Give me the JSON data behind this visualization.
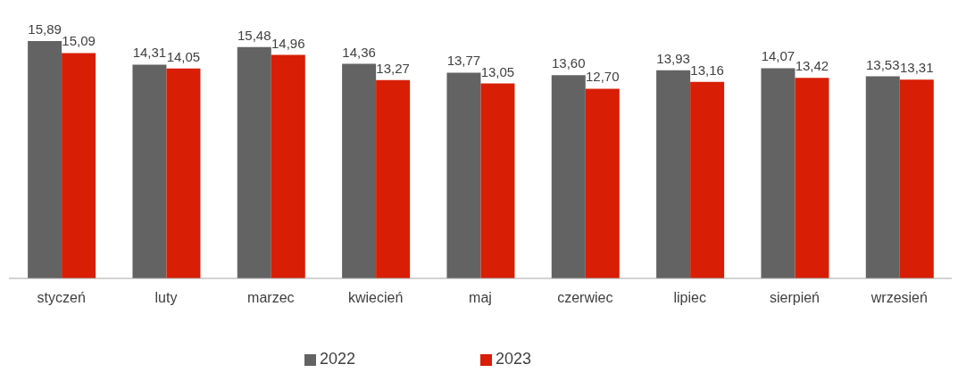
{
  "chart_data": {
    "type": "bar",
    "categories": [
      "styczeń",
      "luty",
      "marzec",
      "kwiecień",
      "maj",
      "czerwiec",
      "lipiec",
      "sierpień",
      "wrzesień"
    ],
    "series": [
      {
        "name": "2022",
        "color": "#636363",
        "values": [
          15.89,
          14.31,
          15.48,
          14.36,
          13.77,
          13.6,
          13.93,
          14.07,
          13.53
        ],
        "value_labels": [
          "15,89",
          "14,31",
          "15,48",
          "14,36",
          "13,77",
          "13,60",
          "13,93",
          "14,07",
          "13,53"
        ]
      },
      {
        "name": "2023",
        "color": "#d81e05",
        "values": [
          15.09,
          14.05,
          14.96,
          13.27,
          13.05,
          12.7,
          13.16,
          13.42,
          13.31
        ],
        "value_labels": [
          "15,09",
          "14,05",
          "14,96",
          "13,27",
          "13,05",
          "12,70",
          "13,16",
          "13,42",
          "13,31"
        ]
      }
    ],
    "legend": "bottom",
    "grid": false
  }
}
